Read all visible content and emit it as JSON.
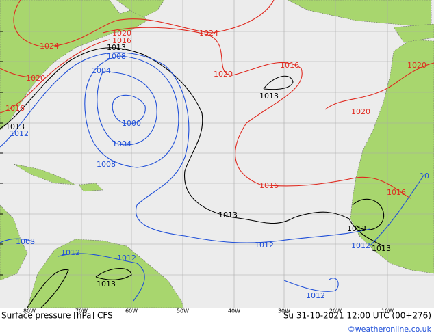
{
  "map": {
    "title": "Surface pressure [hPa] CFS",
    "valid_time": "Su 31-10-2021 12:00 UTC (00+276)",
    "credit": "©weatheronline.co.uk",
    "longitude_labels": [
      "80W",
      "70W",
      "60W",
      "50W",
      "40W",
      "30W",
      "20W",
      "10W"
    ],
    "isobar_groups": [
      {
        "color": "#e0281e",
        "labels": [
          "1020",
          "1016",
          "1024",
          "1024",
          "1020",
          "1016",
          "1020",
          "1016",
          "1020",
          "1020",
          "1016",
          "1016"
        ]
      },
      {
        "color": "#000000",
        "labels": [
          "1013",
          "1013",
          "1013",
          "1013",
          "1013",
          "1013",
          "1013"
        ]
      },
      {
        "color": "#1f4fd8",
        "labels": [
          "1008",
          "1004",
          "1000",
          "1004",
          "1008",
          "1012",
          "1008",
          "1012",
          "1012",
          "1012",
          "1012",
          "1012",
          "10"
        ]
      }
    ]
  }
}
